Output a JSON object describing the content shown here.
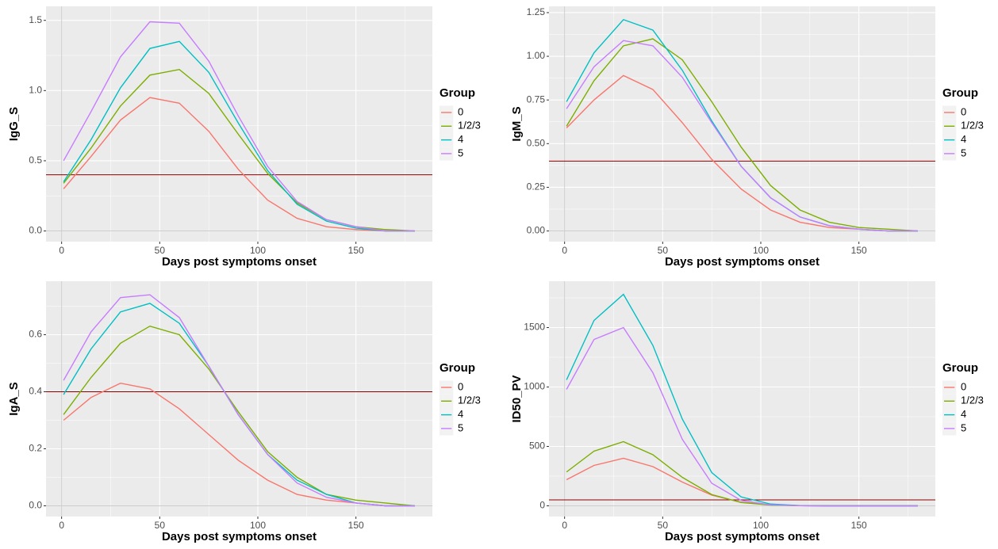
{
  "chart_data": [
    {
      "type": "line",
      "xlabel": "Days post symptoms onset",
      "ylabel": "IgG_S",
      "legend_title": "Group",
      "x": [
        1,
        15,
        30,
        45,
        60,
        75,
        90,
        105,
        120,
        135,
        150,
        165,
        180
      ],
      "xlim": [
        -7.95,
        188.95
      ],
      "xticks": [
        0,
        50,
        100,
        150
      ],
      "ylim": [
        -0.076,
        1.6
      ],
      "yticks": [
        {
          "value": 0,
          "label": "0.0"
        },
        0.5,
        {
          "value": 1,
          "label": "1.0"
        },
        1.5
      ],
      "grid": true,
      "reference_lines": [
        {
          "axis": "x",
          "value": 0,
          "color": "#cccccc"
        },
        {
          "axis": "y",
          "value": 0,
          "color": "#cccccc"
        },
        {
          "axis": "y",
          "value": 0.4,
          "color": "#8b0000"
        }
      ],
      "series": [
        {
          "name": "0",
          "color": "#F8766D",
          "values": [
            0.3,
            0.53,
            0.79,
            0.95,
            0.91,
            0.71,
            0.44,
            0.22,
            0.09,
            0.03,
            0.01,
            0.0,
            0.0
          ]
        },
        {
          "name": "1/2/3",
          "color": "#7CAE00",
          "values": [
            0.34,
            0.59,
            0.89,
            1.11,
            1.15,
            0.98,
            0.69,
            0.41,
            0.2,
            0.08,
            0.03,
            0.01,
            0.0
          ]
        },
        {
          "name": "4",
          "color": "#00BFC4",
          "values": [
            0.35,
            0.65,
            1.02,
            1.3,
            1.35,
            1.13,
            0.77,
            0.43,
            0.19,
            0.07,
            0.02,
            0.0,
            0.0
          ]
        },
        {
          "name": "5",
          "color": "#C77CFF",
          "values": [
            0.5,
            0.85,
            1.24,
            1.49,
            1.48,
            1.21,
            0.82,
            0.46,
            0.21,
            0.08,
            0.03,
            0.0,
            0.0
          ]
        }
      ]
    },
    {
      "type": "line",
      "xlabel": "Days post symptoms onset",
      "ylabel": "IgM_S",
      "legend_title": "Group",
      "x": [
        1,
        15,
        30,
        45,
        60,
        75,
        90,
        105,
        120,
        135,
        150,
        165,
        180
      ],
      "xlim": [
        -7.95,
        188.95
      ],
      "xticks": [
        0,
        50,
        100,
        150
      ],
      "ylim": [
        -0.061,
        1.286
      ],
      "yticks": [
        {
          "value": 0,
          "label": "0.00"
        },
        0.25,
        {
          "value": 0.5,
          "label": "0.50"
        },
        0.75,
        {
          "value": 1,
          "label": "1.00"
        },
        1.25
      ],
      "grid": true,
      "reference_lines": [
        {
          "axis": "x",
          "value": 0,
          "color": "#cccccc"
        },
        {
          "axis": "y",
          "value": 0,
          "color": "#cccccc"
        },
        {
          "axis": "y",
          "value": 0.4,
          "color": "#8b0000"
        }
      ],
      "series": [
        {
          "name": "0",
          "color": "#F8766D",
          "values": [
            0.59,
            0.75,
            0.89,
            0.81,
            0.62,
            0.41,
            0.24,
            0.12,
            0.05,
            0.02,
            0.01,
            0.0,
            0.0
          ]
        },
        {
          "name": "1/2/3",
          "color": "#7CAE00",
          "values": [
            0.6,
            0.86,
            1.06,
            1.1,
            0.98,
            0.74,
            0.48,
            0.26,
            0.12,
            0.05,
            0.02,
            0.01,
            0.0
          ]
        },
        {
          "name": "4",
          "color": "#00BFC4",
          "values": [
            0.74,
            1.02,
            1.21,
            1.15,
            0.92,
            0.63,
            0.37,
            0.19,
            0.08,
            0.03,
            0.01,
            0.0,
            0.0
          ]
        },
        {
          "name": "5",
          "color": "#C77CFF",
          "values": [
            0.7,
            0.94,
            1.09,
            1.06,
            0.88,
            0.62,
            0.37,
            0.19,
            0.08,
            0.03,
            0.01,
            0.0,
            0.0
          ]
        }
      ]
    },
    {
      "type": "line",
      "xlabel": "Days post symptoms onset",
      "ylabel": "IgA_S",
      "legend_title": "Group",
      "x": [
        1,
        15,
        30,
        45,
        60,
        75,
        90,
        105,
        120,
        135,
        150,
        165,
        180
      ],
      "xlim": [
        -7.95,
        188.95
      ],
      "xticks": [
        0,
        50,
        100,
        150
      ],
      "ylim": [
        -0.0375,
        0.7875
      ],
      "yticks": [
        {
          "value": 0,
          "label": "0.0"
        },
        0.2,
        0.4,
        0.6
      ],
      "grid": true,
      "reference_lines": [
        {
          "axis": "x",
          "value": 0,
          "color": "#cccccc"
        },
        {
          "axis": "y",
          "value": 0,
          "color": "#cccccc"
        },
        {
          "axis": "y",
          "value": 0.4,
          "color": "#8b0000"
        }
      ],
      "series": [
        {
          "name": "0",
          "color": "#F8766D",
          "values": [
            0.3,
            0.38,
            0.43,
            0.41,
            0.34,
            0.25,
            0.16,
            0.09,
            0.04,
            0.02,
            0.01,
            0.0,
            0.0
          ]
        },
        {
          "name": "1/2/3",
          "color": "#7CAE00",
          "values": [
            0.32,
            0.45,
            0.57,
            0.63,
            0.6,
            0.48,
            0.33,
            0.19,
            0.1,
            0.04,
            0.02,
            0.01,
            0.0
          ]
        },
        {
          "name": "4",
          "color": "#00BFC4",
          "values": [
            0.39,
            0.55,
            0.68,
            0.71,
            0.64,
            0.49,
            0.32,
            0.18,
            0.09,
            0.04,
            0.01,
            0.0,
            0.0
          ]
        },
        {
          "name": "5",
          "color": "#C77CFF",
          "values": [
            0.44,
            0.61,
            0.73,
            0.74,
            0.66,
            0.49,
            0.32,
            0.18,
            0.08,
            0.03,
            0.01,
            0.0,
            0.0
          ]
        }
      ]
    },
    {
      "type": "line",
      "xlabel": "Days post symptoms onset",
      "ylabel": "ID50_PV",
      "legend_title": "Group",
      "x": [
        1,
        15,
        30,
        45,
        60,
        75,
        90,
        105,
        120,
        135,
        150,
        165,
        180
      ],
      "xlim": [
        -7.95,
        188.95
      ],
      "xticks": [
        0,
        50,
        100,
        150
      ],
      "ylim": [
        -90,
        1890
      ],
      "yticks": [
        0,
        500,
        1000,
        1500
      ],
      "grid": true,
      "reference_lines": [
        {
          "axis": "x",
          "value": 0,
          "color": "#cccccc"
        },
        {
          "axis": "y",
          "value": 0,
          "color": "#cccccc"
        },
        {
          "axis": "y",
          "value": 50,
          "color": "#8b0000"
        }
      ],
      "series": [
        {
          "name": "0",
          "color": "#F8766D",
          "values": [
            220,
            340,
            400,
            330,
            200,
            90,
            30,
            8,
            2,
            0,
            0,
            0,
            0
          ]
        },
        {
          "name": "1/2/3",
          "color": "#7CAE00",
          "values": [
            285,
            460,
            540,
            430,
            240,
            95,
            28,
            6,
            1,
            0,
            0,
            0,
            0
          ]
        },
        {
          "name": "4",
          "color": "#00BFC4",
          "values": [
            1060,
            1560,
            1780,
            1350,
            730,
            280,
            75,
            15,
            2,
            0,
            0,
            0,
            0
          ]
        },
        {
          "name": "5",
          "color": "#C77CFF",
          "values": [
            980,
            1400,
            1500,
            1120,
            560,
            190,
            45,
            8,
            1,
            0,
            0,
            0,
            0
          ]
        }
      ]
    }
  ]
}
